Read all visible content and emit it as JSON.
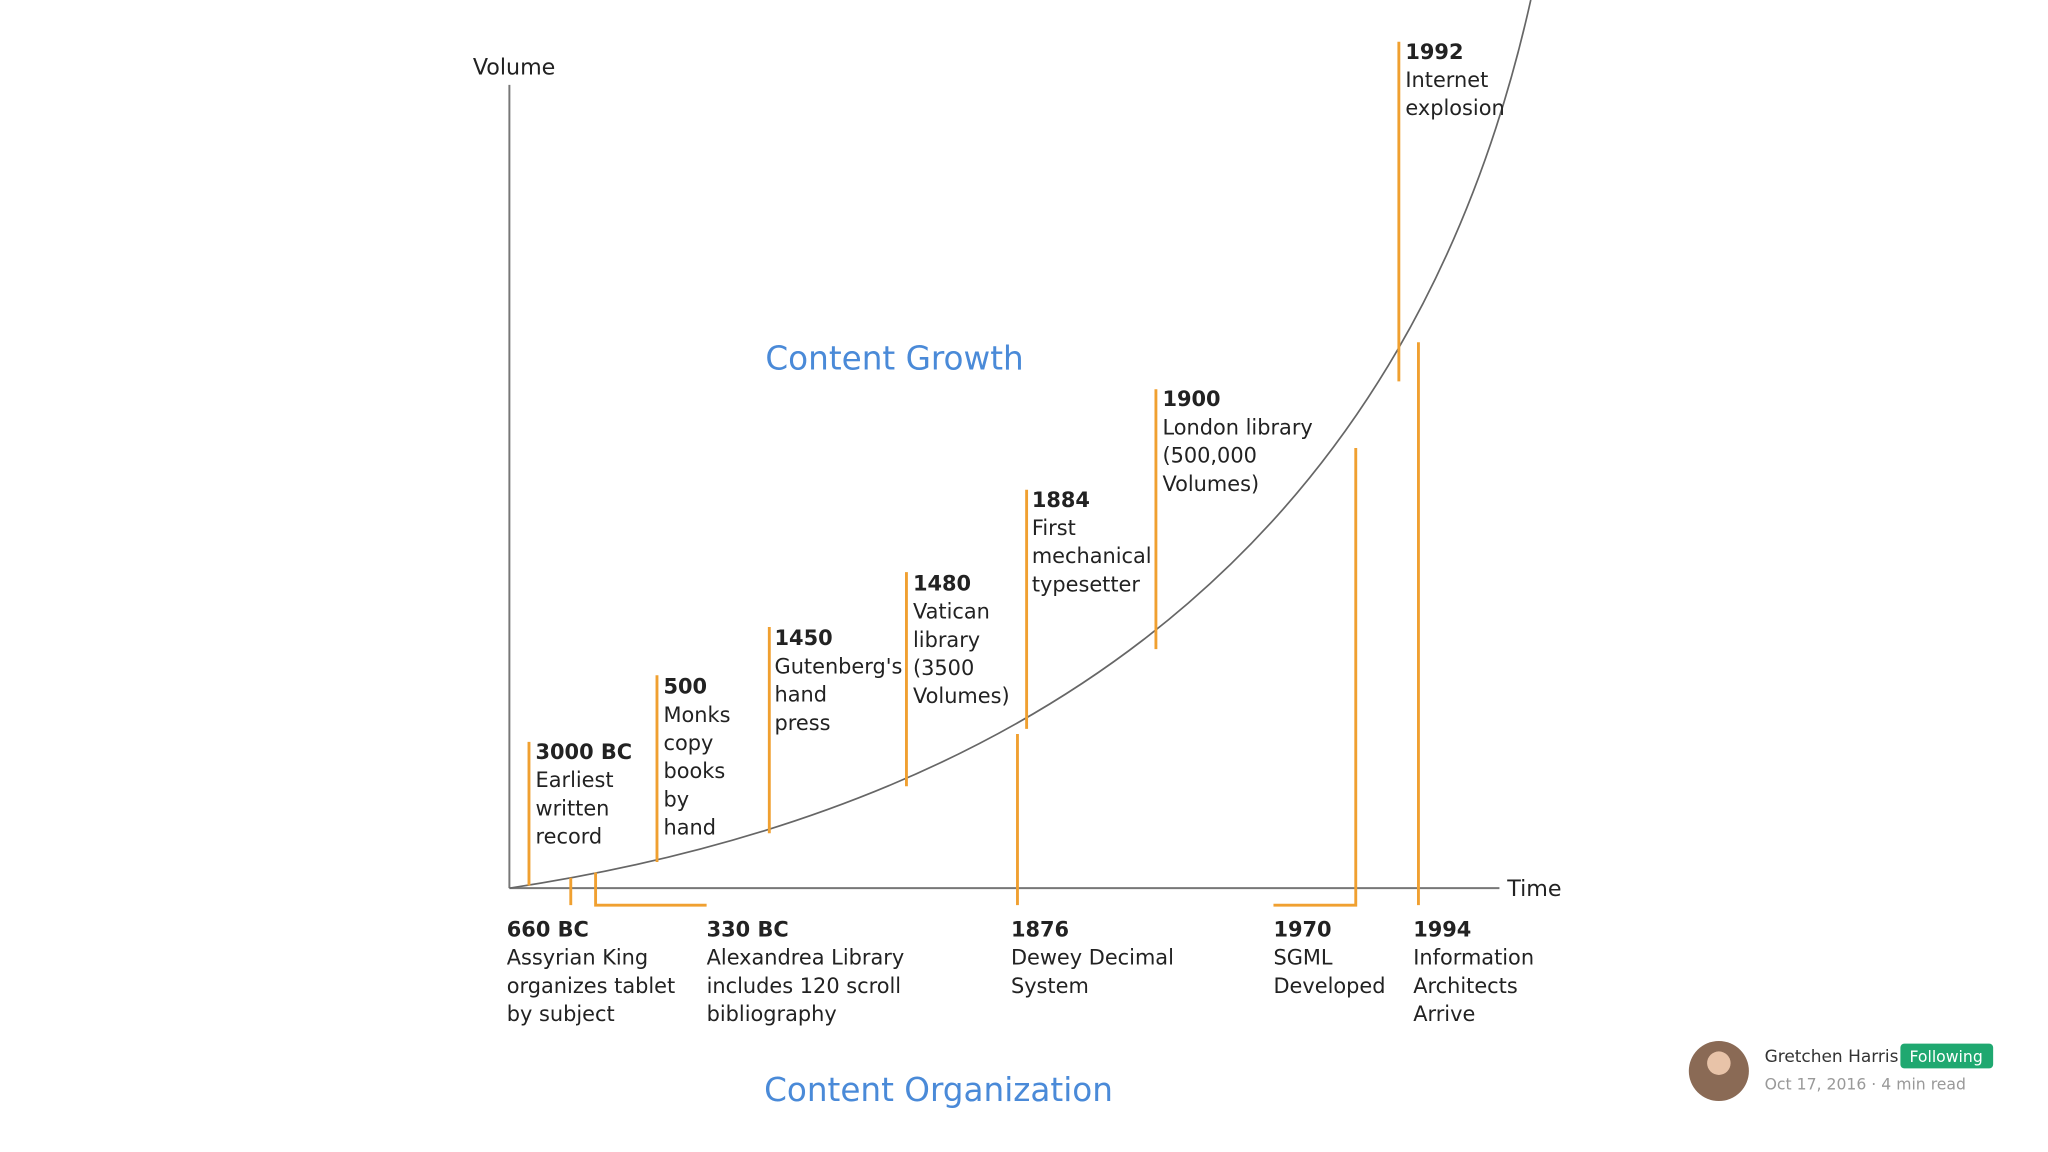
{
  "axis_labels": {
    "y": "Volume",
    "x": "Time"
  },
  "titles": {
    "growth": "Content Growth",
    "organization": "Content Organization"
  },
  "upper_events": [
    {
      "year": "3000 BC",
      "lines": [
        "Earliest",
        "written",
        "record"
      ]
    },
    {
      "year": "500",
      "lines": [
        "Monks",
        "copy",
        "books",
        "by",
        "hand"
      ]
    },
    {
      "year": "1450",
      "lines": [
        "Gutenberg's",
        "hand",
        "press"
      ]
    },
    {
      "year": "1480",
      "lines": [
        "Vatican",
        "library",
        "(3500",
        "Volumes)"
      ]
    },
    {
      "year": "1884",
      "lines": [
        "First",
        "mechanical",
        "typesetter"
      ]
    },
    {
      "year": "1900",
      "lines": [
        "London library",
        "(500,000",
        "Volumes)"
      ]
    },
    {
      "year": "1992",
      "lines": [
        "Internet",
        "explosion"
      ]
    }
  ],
  "lower_events": [
    {
      "year": "660 BC",
      "lines": [
        "Assyrian King",
        "organizes tablet",
        "by subject"
      ]
    },
    {
      "year": "330 BC",
      "lines": [
        "Alexandrea Library",
        "includes 120 scroll",
        "bibliography"
      ]
    },
    {
      "year": "1876",
      "lines": [
        "Dewey Decimal",
        "System"
      ]
    },
    {
      "year": "1970",
      "lines": [
        "SGML",
        "Developed"
      ]
    },
    {
      "year": "1994",
      "lines": [
        "Information",
        "Architects",
        "Arrive"
      ]
    }
  ],
  "author": {
    "name": "Gretchen Harris",
    "badge": "Following",
    "meta": "Oct 17, 2016 · 4 min read"
  }
}
